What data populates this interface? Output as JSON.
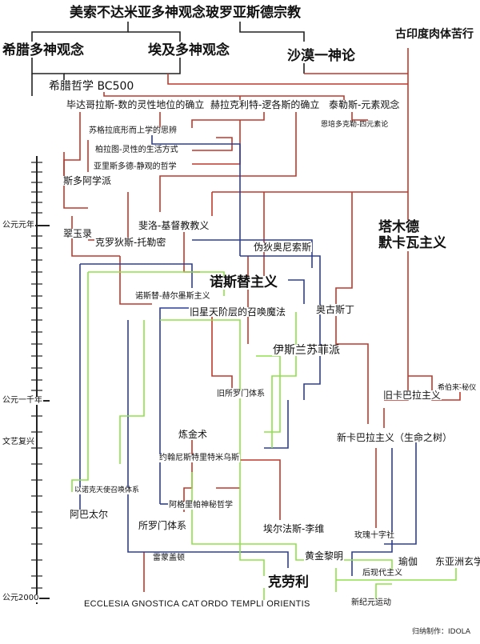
{
  "nodes": {
    "mesopotamia": "美索不达米亚多神观念",
    "zoroastrianism": "玻罗亚斯德宗教",
    "greek_polytheism": "希腊多神观念",
    "egypt_polytheism": "埃及多神观念",
    "desert_monotheism": "沙漠一神论",
    "ancient_india_asceticism": "古印度肉体苦行",
    "greek_philosophy": "希腊哲学 BC500",
    "pythagoras": "毕达哥拉斯-数的灵性地位的确立",
    "heraclitus": "赫拉克利特-逻各斯的确立",
    "thales": "泰勒斯-元素观念",
    "empedocles": "恩培多克勒-四元素论",
    "socrates": "苏格拉底形而上学的思辨",
    "plato": "柏拉图-灵性的生活方式",
    "aristotle": "亚里斯多德-静观的哲学",
    "stoicism": "斯多阿学派",
    "talmud_kabbalah": "塔木德\n默卡瓦主义",
    "philo": "斐洛-基督教教义",
    "emerald_tablet": "翠玉录",
    "ptolemy": "克罗狄斯-托勒密",
    "pseudo_dionysius": "伪狄奥尼索斯",
    "gnosticism": "诺斯替主义",
    "hermetic": "诺斯替-赫尔墨斯主义",
    "augustine": "奥古斯丁",
    "old_astral": "旧星天阶层的召唤魔法",
    "sufism": "伊斯兰苏菲派",
    "old_solomonic": "旧所罗门体系",
    "old_kabbalah": "旧卡巴拉主义",
    "sefer_yetzirah": "希伯来-秘仪",
    "alchemy": "炼金术",
    "new_kabbalah": "新卡巴拉主义（生命之树）",
    "john_dee": "约翰尼斯特里特米乌斯",
    "enochian": "以诺克天使召唤体系",
    "agrippa": "阿格里帕神秘哲学",
    "abramelin": "阿巴太尔",
    "solomonic": "所罗门体系",
    "eliphas_levi": "埃尔法斯-李维",
    "rosicrucian": "玫瑰十字社",
    "golden_dawn": "黄金黎明",
    "regardie": "雷蒙盖顿",
    "yoga": "瑜伽",
    "east_asian_mysticism": "东亚洲玄学",
    "postmodernism": "后现代主义",
    "crowley": "克劳利",
    "ecclesia": "ECCLESIA  GNOSTICA  CATHOLCA",
    "oto": "ORDO  TEMPLI  ORIENTIS",
    "new_age": "新纪元运动"
  },
  "timeline": {
    "ad_1": "公元元年",
    "ad_1000": "公元一千年",
    "renaissance": "文艺复兴",
    "ad_2000": "公元2000"
  },
  "credit": "归纳制作：IDOLA",
  "colors": {
    "red": "#c0392b",
    "blue": "#2c3e9c",
    "green": "#8fe04a",
    "dark": "#222222"
  }
}
